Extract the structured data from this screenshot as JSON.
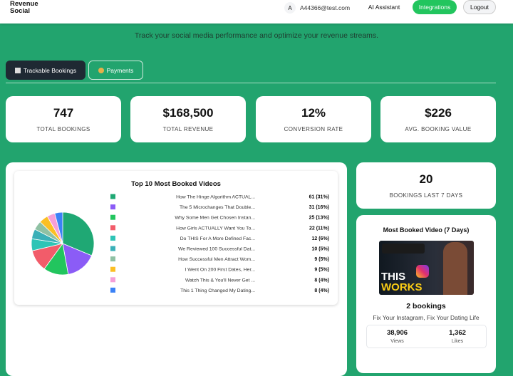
{
  "header": {
    "logo": [
      "Revenue",
      "Social"
    ],
    "avatar": "A",
    "email": "A44366@test.com",
    "nav": [
      "AI Assistant",
      "Integrations",
      "Logout"
    ]
  },
  "hero": {
    "subtitle": "Track your social media performance and optimize your revenue streams."
  },
  "tabs": [
    "Trackable Bookings",
    "Payments"
  ],
  "stats": [
    {
      "value": "747",
      "label": "TOTAL BOOKINGS"
    },
    {
      "value": "$168,500",
      "label": "TOTAL REVENUE"
    },
    {
      "value": "12%",
      "label": "CONVERSION RATE"
    },
    {
      "value": "$226",
      "label": "AVG. BOOKING VALUE"
    }
  ],
  "chart_data": {
    "type": "pie",
    "title": "Top 10 Most Booked Videos",
    "categories": [
      "How The Hinge Algorithm ACTUAL...",
      "The 5 Microchanges That Double...",
      "Why Some Men Get Chosen Instan...",
      "How Girls ACTUALLY Want You To...",
      "Do THIS For A More Defined Fac...",
      "We Reviewed 100 Successful Dat...",
      "How Successful Men Attract Wom...",
      "I Went On 200 First Dates, Her...",
      "Watch This & You'll Never Get ...",
      "This 1 Thing Changed My Dating..."
    ],
    "values": [
      61,
      31,
      25,
      22,
      12,
      10,
      9,
      9,
      8,
      8
    ],
    "value_labels": [
      "61 (31%)",
      "31 (16%)",
      "25 (13%)",
      "22 (11%)",
      "12 (6%)",
      "10 (5%)",
      "9 (5%)",
      "9 (5%)",
      "8 (4%)",
      "8 (4%)"
    ],
    "colors": [
      "#1fa874",
      "#8b5cf6",
      "#22c55e",
      "#f25c6a",
      "#2ec4b6",
      "#3ab0b8",
      "#8fc1a4",
      "#fbbf24",
      "#f59fd8",
      "#3b82f6"
    ]
  },
  "recent": {
    "value": "20",
    "label": "BOOKINGS LAST 7 DAYS"
  },
  "most_booked": {
    "title": "Most Booked Video (7 Days)",
    "thumbnail": [
      "THIS",
      "WORKS"
    ],
    "bookings": "2 bookings",
    "video_title": "Fix Your Instagram, Fix Your Dating Life",
    "views": "38,906",
    "views_label": "Views",
    "likes": "1,362",
    "likes_label": "Likes"
  }
}
